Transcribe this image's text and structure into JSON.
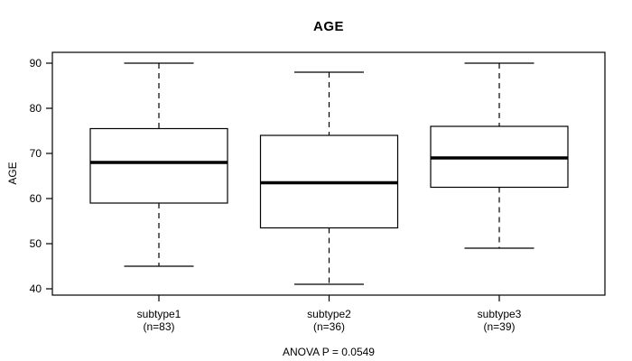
{
  "title": "AGE",
  "colors": {
    "foreground": "#000000",
    "background": "#ffffff",
    "box_fill": "#ffffff"
  },
  "chart_data": {
    "type": "boxplot",
    "title": "AGE",
    "ylabel": "AGE",
    "xlabel": "",
    "ylim": [
      39,
      92
    ],
    "yticks": [
      40,
      50,
      60,
      70,
      80,
      90
    ],
    "grid": false,
    "legend": "none",
    "annotation": "ANOVA P = 0.0549",
    "groups": [
      {
        "label": "subtype1",
        "sublabel": "(n=83)",
        "n": 83,
        "whisker_low": 45,
        "q1": 59,
        "median": 68,
        "q3": 75.5,
        "whisker_high": 90
      },
      {
        "label": "subtype2",
        "sublabel": "(n=36)",
        "n": 36,
        "whisker_low": 41,
        "q1": 53.5,
        "median": 63.5,
        "q3": 74,
        "whisker_high": 88
      },
      {
        "label": "subtype3",
        "sublabel": "(n=39)",
        "n": 39,
        "whisker_low": 49,
        "q1": 62.5,
        "median": 69,
        "q3": 76,
        "whisker_high": 90
      }
    ]
  }
}
